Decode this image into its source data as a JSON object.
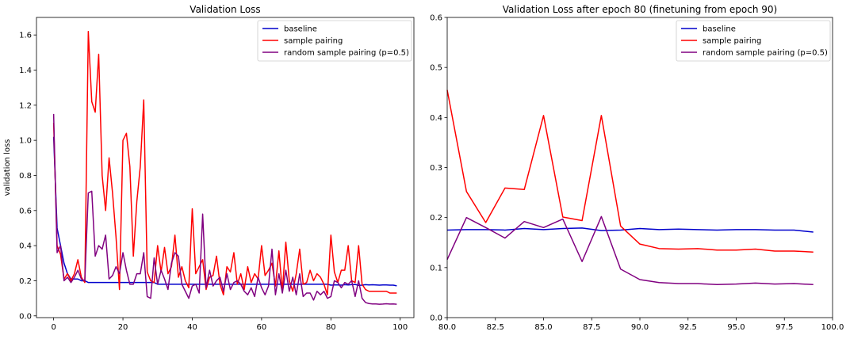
{
  "chart_data": [
    {
      "type": "line",
      "title": "Validation Loss",
      "xlabel": "",
      "ylabel": "validation loss",
      "xlim": [
        -4.95,
        103.95
      ],
      "ylim": [
        -0.01,
        1.7
      ],
      "xticks": [
        0,
        20,
        40,
        60,
        80,
        100
      ],
      "xtick_labels": [
        "0",
        "20",
        "40",
        "60",
        "80",
        "100"
      ],
      "yticks": [
        0.0,
        0.2,
        0.4,
        0.6,
        0.8,
        1.0,
        1.2,
        1.4,
        1.6
      ],
      "ytick_labels": [
        "0.0",
        "0.2",
        "0.4",
        "0.6",
        "0.8",
        "1.0",
        "1.2",
        "1.4",
        "1.6"
      ],
      "grid": false,
      "legend_position": "top-right",
      "series": [
        {
          "name": "baseline",
          "color": "#0000cc",
          "x": [
            0,
            1,
            2,
            3,
            4,
            5,
            6,
            7,
            8,
            9,
            10,
            11,
            12,
            13,
            14,
            15,
            16,
            17,
            18,
            19,
            20,
            21,
            22,
            23,
            24,
            25,
            26,
            27,
            28,
            29,
            30,
            31,
            32,
            33,
            34,
            35,
            36,
            37,
            38,
            39,
            40,
            41,
            42,
            43,
            44,
            45,
            46,
            47,
            48,
            49,
            50,
            51,
            52,
            53,
            54,
            55,
            56,
            57,
            58,
            59,
            60,
            61,
            62,
            63,
            64,
            65,
            66,
            67,
            68,
            69,
            70,
            71,
            72,
            73,
            74,
            75,
            76,
            77,
            78,
            79,
            80,
            81,
            82,
            83,
            84,
            85,
            86,
            87,
            88,
            89,
            90,
            91,
            92,
            93,
            94,
            95,
            96,
            97,
            98,
            99
          ],
          "y": [
            1.02,
            0.5,
            0.4,
            0.3,
            0.24,
            0.21,
            0.21,
            0.21,
            0.2,
            0.2,
            0.19,
            0.19,
            0.19,
            0.19,
            0.19,
            0.19,
            0.19,
            0.19,
            0.19,
            0.19,
            0.19,
            0.19,
            0.19,
            0.19,
            0.19,
            0.19,
            0.19,
            0.19,
            0.19,
            0.19,
            0.18,
            0.18,
            0.18,
            0.18,
            0.18,
            0.18,
            0.18,
            0.18,
            0.18,
            0.18,
            0.18,
            0.18,
            0.18,
            0.18,
            0.18,
            0.18,
            0.18,
            0.18,
            0.18,
            0.18,
            0.18,
            0.18,
            0.18,
            0.18,
            0.18,
            0.18,
            0.18,
            0.18,
            0.18,
            0.18,
            0.18,
            0.18,
            0.18,
            0.18,
            0.18,
            0.18,
            0.18,
            0.18,
            0.18,
            0.18,
            0.18,
            0.18,
            0.18,
            0.18,
            0.18,
            0.18,
            0.18,
            0.18,
            0.18,
            0.18,
            0.175,
            0.176,
            0.176,
            0.175,
            0.178,
            0.176,
            0.178,
            0.179,
            0.174,
            0.175,
            0.178,
            0.176,
            0.177,
            0.176,
            0.175,
            0.176,
            0.176,
            0.175,
            0.175,
            0.171
          ]
        },
        {
          "name": "sample pairing",
          "color": "#ff0000",
          "x": [
            0,
            1,
            2,
            3,
            4,
            5,
            6,
            7,
            8,
            9,
            10,
            11,
            12,
            13,
            14,
            15,
            16,
            17,
            18,
            19,
            20,
            21,
            22,
            23,
            24,
            25,
            26,
            27,
            28,
            29,
            30,
            31,
            32,
            33,
            34,
            35,
            36,
            37,
            38,
            39,
            40,
            41,
            42,
            43,
            44,
            45,
            46,
            47,
            48,
            49,
            50,
            51,
            52,
            53,
            54,
            55,
            56,
            57,
            58,
            59,
            60,
            61,
            62,
            63,
            64,
            65,
            66,
            67,
            68,
            69,
            70,
            71,
            72,
            73,
            74,
            75,
            76,
            77,
            78,
            79,
            80,
            81,
            82,
            83,
            84,
            85,
            86,
            87,
            88,
            89,
            90,
            91,
            92,
            93,
            94,
            95,
            96,
            97,
            98,
            99
          ],
          "y": [
            1.1,
            0.4,
            0.35,
            0.21,
            0.24,
            0.2,
            0.24,
            0.32,
            0.22,
            0.19,
            1.62,
            1.22,
            1.16,
            1.49,
            0.8,
            0.6,
            0.9,
            0.7,
            0.45,
            0.15,
            1.0,
            1.04,
            0.85,
            0.34,
            0.65,
            0.85,
            1.23,
            0.25,
            0.2,
            0.19,
            0.4,
            0.25,
            0.39,
            0.24,
            0.28,
            0.46,
            0.22,
            0.28,
            0.2,
            0.16,
            0.61,
            0.24,
            0.28,
            0.32,
            0.15,
            0.22,
            0.23,
            0.34,
            0.18,
            0.12,
            0.28,
            0.25,
            0.36,
            0.18,
            0.24,
            0.15,
            0.28,
            0.19,
            0.24,
            0.21,
            0.4,
            0.23,
            0.26,
            0.3,
            0.17,
            0.37,
            0.14,
            0.42,
            0.2,
            0.14,
            0.24,
            0.38,
            0.18,
            0.19,
            0.26,
            0.2,
            0.24,
            0.22,
            0.18,
            0.12,
            0.46,
            0.25,
            0.19,
            0.26,
            0.26,
            0.4,
            0.2,
            0.19,
            0.4,
            0.18,
            0.15,
            0.14,
            0.14,
            0.14,
            0.14,
            0.14,
            0.14,
            0.13,
            0.13,
            0.13
          ]
        },
        {
          "name": "random sample pairing (p=0.5)",
          "color": "#800080",
          "x": [
            0,
            1,
            2,
            3,
            4,
            5,
            6,
            7,
            8,
            9,
            10,
            11,
            12,
            13,
            14,
            15,
            16,
            17,
            18,
            19,
            20,
            21,
            22,
            23,
            24,
            25,
            26,
            27,
            28,
            29,
            30,
            31,
            32,
            33,
            34,
            35,
            36,
            37,
            38,
            39,
            40,
            41,
            42,
            43,
            44,
            45,
            46,
            47,
            48,
            49,
            50,
            51,
            52,
            53,
            54,
            55,
            56,
            57,
            58,
            59,
            60,
            61,
            62,
            63,
            64,
            65,
            66,
            67,
            68,
            69,
            70,
            71,
            72,
            73,
            74,
            75,
            76,
            77,
            78,
            79,
            80,
            81,
            82,
            83,
            84,
            85,
            86,
            87,
            88,
            89,
            90,
            91,
            92,
            93,
            94,
            95,
            96,
            97,
            98,
            99
          ],
          "y": [
            1.15,
            0.36,
            0.4,
            0.2,
            0.22,
            0.19,
            0.22,
            0.26,
            0.21,
            0.2,
            0.7,
            0.71,
            0.34,
            0.4,
            0.38,
            0.46,
            0.21,
            0.23,
            0.28,
            0.24,
            0.36,
            0.26,
            0.18,
            0.18,
            0.24,
            0.24,
            0.36,
            0.11,
            0.1,
            0.33,
            0.18,
            0.26,
            0.21,
            0.15,
            0.3,
            0.36,
            0.34,
            0.18,
            0.14,
            0.1,
            0.17,
            0.18,
            0.13,
            0.58,
            0.16,
            0.26,
            0.17,
            0.2,
            0.22,
            0.14,
            0.24,
            0.15,
            0.19,
            0.2,
            0.18,
            0.14,
            0.12,
            0.16,
            0.11,
            0.22,
            0.16,
            0.12,
            0.17,
            0.38,
            0.12,
            0.24,
            0.13,
            0.26,
            0.14,
            0.22,
            0.12,
            0.24,
            0.11,
            0.13,
            0.13,
            0.09,
            0.14,
            0.12,
            0.14,
            0.1,
            0.11,
            0.2,
            0.19,
            0.16,
            0.19,
            0.18,
            0.2,
            0.11,
            0.2,
            0.1,
            0.076,
            0.07,
            0.068,
            0.068,
            0.066,
            0.067,
            0.069,
            0.067,
            0.068,
            0.066
          ]
        }
      ]
    },
    {
      "type": "line",
      "title": "Validation Loss after epoch 80 (finetuning from epoch 90)",
      "xlabel": "",
      "ylabel": "",
      "xlim": [
        80.0,
        100.0
      ],
      "ylim": [
        0.0,
        0.6
      ],
      "xticks": [
        80.0,
        82.5,
        85.0,
        87.5,
        90.0,
        92.5,
        95.0,
        97.5,
        100.0
      ],
      "xtick_labels": [
        "80.0",
        "82.5",
        "85.0",
        "87.5",
        "90.0",
        "92.5",
        "95.0",
        "97.5",
        "100.0"
      ],
      "yticks": [
        0.0,
        0.1,
        0.2,
        0.3,
        0.4,
        0.5,
        0.6
      ],
      "ytick_labels": [
        "0.0",
        "0.1",
        "0.2",
        "0.3",
        "0.4",
        "0.5",
        "0.6"
      ],
      "grid": false,
      "legend_position": "top-right",
      "series": [
        {
          "name": "baseline",
          "color": "#0000cc",
          "x": [
            80,
            81,
            82,
            83,
            84,
            85,
            86,
            87,
            88,
            89,
            90,
            91,
            92,
            93,
            94,
            95,
            96,
            97,
            98,
            99
          ],
          "y": [
            0.175,
            0.176,
            0.176,
            0.175,
            0.178,
            0.176,
            0.178,
            0.179,
            0.174,
            0.175,
            0.178,
            0.176,
            0.177,
            0.176,
            0.175,
            0.176,
            0.176,
            0.175,
            0.175,
            0.171
          ]
        },
        {
          "name": "sample pairing",
          "color": "#ff0000",
          "x": [
            80,
            81,
            82,
            83,
            84,
            85,
            86,
            87,
            88,
            89,
            90,
            91,
            92,
            93,
            94,
            95,
            96,
            97,
            98,
            99
          ],
          "y": [
            0.455,
            0.252,
            0.19,
            0.259,
            0.256,
            0.404,
            0.201,
            0.194,
            0.404,
            0.183,
            0.147,
            0.138,
            0.137,
            0.138,
            0.135,
            0.135,
            0.137,
            0.133,
            0.133,
            0.131
          ]
        },
        {
          "name": "random sample pairing (p=0.5)",
          "color": "#800080",
          "x": [
            80,
            81,
            82,
            83,
            84,
            85,
            86,
            87,
            88,
            89,
            90,
            91,
            92,
            93,
            94,
            95,
            96,
            97,
            98,
            99
          ],
          "y": [
            0.116,
            0.2,
            0.18,
            0.159,
            0.192,
            0.18,
            0.197,
            0.112,
            0.202,
            0.097,
            0.076,
            0.07,
            0.068,
            0.068,
            0.066,
            0.067,
            0.069,
            0.067,
            0.068,
            0.066
          ]
        }
      ]
    }
  ]
}
